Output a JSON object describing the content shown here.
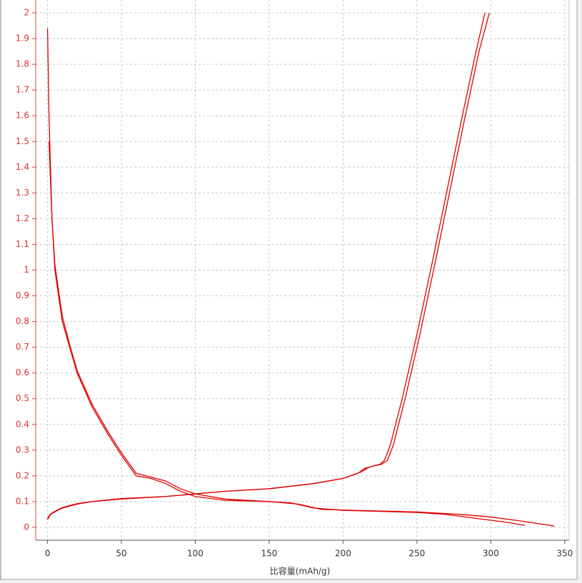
{
  "chart_data": {
    "type": "line",
    "x_label": "比容量(mAh/g)",
    "xlim": [
      -8,
      353
    ],
    "ylim": [
      -0.05,
      2.05
    ],
    "xticks": [
      0,
      50,
      100,
      150,
      200,
      250,
      300,
      350
    ],
    "yticks": [
      0,
      0.1,
      0.2,
      0.3,
      0.4,
      0.5,
      0.6,
      0.7,
      0.8,
      0.9,
      1,
      1.1,
      1.2,
      1.3,
      1.4,
      1.5,
      1.6,
      1.7,
      1.8,
      1.9,
      2
    ],
    "grid": true,
    "series": [
      {
        "color": "#e00000",
        "x": [
          0,
          1,
          2,
          3,
          5,
          8,
          10,
          15,
          20,
          30,
          40,
          50,
          60,
          70,
          80,
          90,
          100,
          120,
          150,
          170,
          185,
          200,
          250,
          280,
          300,
          320,
          343
        ],
        "values": [
          1.94,
          1.6,
          1.4,
          1.2,
          1.0,
          0.88,
          0.8,
          0.7,
          0.6,
          0.47,
          0.37,
          0.28,
          0.2,
          0.19,
          0.17,
          0.14,
          0.12,
          0.105,
          0.1,
          0.09,
          0.07,
          0.067,
          0.06,
          0.05,
          0.04,
          0.025,
          0.005
        ]
      },
      {
        "color": "#e00000",
        "x": [
          1,
          2,
          3,
          5,
          8,
          10,
          15,
          20,
          30,
          40,
          50,
          60,
          70,
          80,
          90,
          100,
          120,
          150,
          165,
          180,
          200,
          250,
          270,
          290,
          310,
          323
        ],
        "values": [
          1.5,
          1.35,
          1.2,
          1.02,
          0.9,
          0.82,
          0.71,
          0.61,
          0.48,
          0.38,
          0.29,
          0.21,
          0.195,
          0.18,
          0.15,
          0.13,
          0.11,
          0.1,
          0.095,
          0.075,
          0.066,
          0.058,
          0.05,
          0.035,
          0.02,
          0.008
        ]
      },
      {
        "color": "#e00000",
        "x": [
          0,
          2,
          5,
          10,
          20,
          30,
          50,
          80,
          100,
          120,
          150,
          180,
          200,
          210,
          215,
          225,
          228,
          232,
          240,
          250,
          260,
          270,
          280,
          290,
          296
        ],
        "values": [
          0.03,
          0.05,
          0.06,
          0.075,
          0.09,
          0.1,
          0.11,
          0.12,
          0.13,
          0.14,
          0.15,
          0.17,
          0.19,
          0.21,
          0.23,
          0.245,
          0.26,
          0.32,
          0.5,
          0.75,
          1.02,
          1.3,
          1.58,
          1.85,
          2.0
        ]
      },
      {
        "color": "#e00000",
        "x": [
          0,
          2,
          5,
          10,
          20,
          30,
          50,
          80,
          100,
          120,
          150,
          180,
          200,
          212,
          218,
          226,
          230,
          234,
          242,
          252,
          262,
          272,
          282,
          292,
          299
        ],
        "values": [
          0.035,
          0.052,
          0.062,
          0.077,
          0.092,
          0.1,
          0.112,
          0.12,
          0.13,
          0.14,
          0.15,
          0.17,
          0.19,
          0.215,
          0.235,
          0.245,
          0.26,
          0.32,
          0.5,
          0.75,
          1.02,
          1.3,
          1.58,
          1.85,
          2.0
        ]
      }
    ]
  }
}
